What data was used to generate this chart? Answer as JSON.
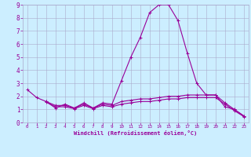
{
  "bg_color": "#cceeff",
  "grid_color": "#aaaacc",
  "line_color": "#990099",
  "xlabel": "Windchill (Refroidissement éolien,°C)",
  "xlabel_color": "#990099",
  "tick_color": "#990099",
  "xlim": [
    -0.5,
    23.5
  ],
  "ylim": [
    0,
    9
  ],
  "xticks": [
    0,
    1,
    2,
    3,
    4,
    5,
    6,
    7,
    8,
    9,
    10,
    11,
    12,
    13,
    14,
    15,
    16,
    17,
    18,
    19,
    20,
    21,
    22,
    23
  ],
  "yticks": [
    0,
    1,
    2,
    3,
    4,
    5,
    6,
    7,
    8,
    9
  ],
  "series1_x": [
    0,
    1,
    2,
    3,
    4,
    5,
    6,
    7,
    8,
    9,
    10,
    11,
    12,
    13,
    14,
    15,
    16,
    17,
    18,
    19,
    20,
    21,
    22,
    23
  ],
  "series1_y": [
    2.5,
    1.9,
    1.6,
    1.1,
    1.4,
    1.1,
    1.5,
    1.1,
    1.5,
    1.4,
    3.2,
    5.0,
    6.5,
    8.4,
    9.0,
    9.0,
    7.8,
    5.3,
    3.0,
    2.1,
    2.1,
    1.2,
    1.0,
    0.5
  ],
  "series2_x": [
    2,
    3,
    4,
    5,
    6,
    7,
    8,
    9,
    10,
    11,
    12,
    13,
    14,
    15,
    16,
    17,
    18,
    19,
    20,
    21,
    22,
    23
  ],
  "series2_y": [
    1.6,
    1.3,
    1.3,
    1.1,
    1.4,
    1.1,
    1.4,
    1.3,
    1.6,
    1.7,
    1.8,
    1.8,
    1.9,
    2.0,
    2.0,
    2.1,
    2.1,
    2.1,
    2.1,
    1.5,
    1.0,
    0.5
  ],
  "series3_x": [
    2,
    3,
    4,
    5,
    6,
    7,
    8,
    9,
    10,
    11,
    12,
    13,
    14,
    15,
    16,
    17,
    18,
    19,
    20,
    21,
    22,
    23
  ],
  "series3_y": [
    1.55,
    1.2,
    1.2,
    1.05,
    1.3,
    1.05,
    1.3,
    1.2,
    1.4,
    1.5,
    1.6,
    1.6,
    1.7,
    1.8,
    1.8,
    1.9,
    1.9,
    1.9,
    1.9,
    1.4,
    0.9,
    0.45
  ]
}
